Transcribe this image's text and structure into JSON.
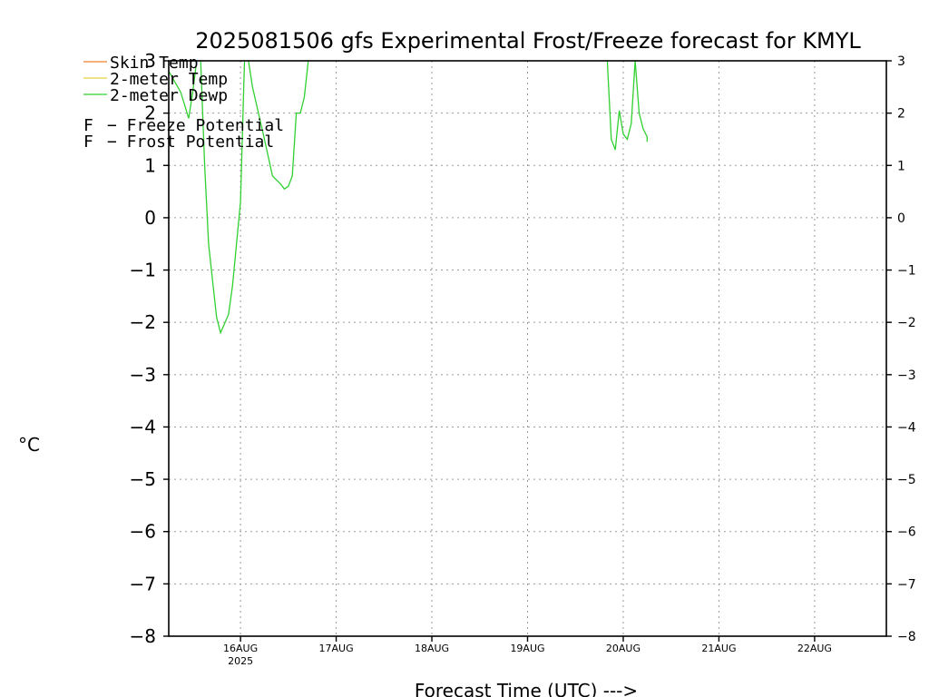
{
  "chart_data": {
    "type": "line",
    "title": "2025081506 gfs Experimental Frost/Freeze forecast for KMYL",
    "xlabel": "Forecast Time (UTC) --->",
    "ylabel": "°C",
    "ylim": [
      -8,
      3
    ],
    "y_ticks": [
      "3",
      "2",
      "1",
      "0",
      "−1",
      "−2",
      "−3",
      "−4",
      "−5",
      "−6",
      "−7",
      "−8"
    ],
    "x_range_days": [
      "2025-08-15T06",
      "2025-08-22T18"
    ],
    "x_ticks": [
      {
        "label": "16AUG",
        "sub": "2025",
        "t": "2025-08-16T00"
      },
      {
        "label": "17AUG",
        "sub": "",
        "t": "2025-08-17T00"
      },
      {
        "label": "18AUG",
        "sub": "",
        "t": "2025-08-18T00"
      },
      {
        "label": "19AUG",
        "sub": "",
        "t": "2025-08-19T00"
      },
      {
        "label": "20AUG",
        "sub": "",
        "t": "2025-08-20T00"
      },
      {
        "label": "21AUG",
        "sub": "",
        "t": "2025-08-21T00"
      },
      {
        "label": "22AUG",
        "sub": "",
        "t": "2025-08-22T00"
      }
    ],
    "grid": true,
    "legend": [
      {
        "name": "Skin Temp",
        "color": "#f08030",
        "type": "line"
      },
      {
        "name": "2-meter Temp",
        "color": "#e8d040",
        "type": "line"
      },
      {
        "name": "2-meter Dewp",
        "color": "#30d030",
        "type": "line"
      },
      {
        "name": "− Freeze Potential",
        "marker": "F",
        "color": "#d02090",
        "type": "marker"
      },
      {
        "name": "− Frost Potential",
        "marker": "F",
        "color": "#4060e0",
        "type": "marker"
      }
    ],
    "series": [
      {
        "name": "2-meter Dewp",
        "color": "#30d030",
        "segments": [
          [
            [
              "2025-08-15T06",
              2.8
            ],
            [
              "2025-08-15T09",
              2.4
            ],
            [
              "2025-08-15T11",
              1.9
            ],
            [
              "2025-08-15T12",
              2.4
            ],
            [
              "2025-08-15T13",
              3.0
            ]
          ],
          [
            [
              "2025-08-15T14",
              3.0
            ],
            [
              "2025-08-15T15",
              1.0
            ],
            [
              "2025-08-15T16",
              -0.5
            ],
            [
              "2025-08-15T18",
              -1.9
            ],
            [
              "2025-08-15T19",
              -2.2
            ],
            [
              "2025-08-15T21",
              -1.85
            ],
            [
              "2025-08-15T22",
              -1.3
            ],
            [
              "2025-08-15T23",
              -0.5
            ],
            [
              "2025-08-16T00",
              0.3
            ],
            [
              "2025-08-16T01",
              3.0
            ]
          ],
          [
            [
              "2025-08-16T02",
              3.0
            ],
            [
              "2025-08-16T03",
              2.5
            ],
            [
              "2025-08-16T06",
              1.5
            ],
            [
              "2025-08-16T08",
              0.8
            ],
            [
              "2025-08-16T10",
              0.65
            ],
            [
              "2025-08-16T11",
              0.55
            ],
            [
              "2025-08-16T12",
              0.6
            ],
            [
              "2025-08-16T13",
              0.8
            ],
            [
              "2025-08-16T14",
              2.0
            ],
            [
              "2025-08-16T15",
              2.0
            ],
            [
              "2025-08-16T16",
              2.3
            ],
            [
              "2025-08-16T17",
              3.0
            ]
          ],
          [
            [
              "2025-08-19T20",
              3.0
            ],
            [
              "2025-08-19T21",
              1.5
            ],
            [
              "2025-08-19T22",
              1.3
            ],
            [
              "2025-08-19T23",
              2.05
            ],
            [
              "2025-08-20T00",
              1.6
            ],
            [
              "2025-08-20T01",
              1.5
            ],
            [
              "2025-08-20T02",
              1.8
            ],
            [
              "2025-08-20T03",
              3.0
            ]
          ],
          [
            [
              "2025-08-20T03",
              3.0
            ],
            [
              "2025-08-20T04",
              2.0
            ],
            [
              "2025-08-20T05",
              1.7
            ],
            [
              "2025-08-20T06",
              1.55
            ],
            [
              "2025-08-20T06",
              1.45
            ]
          ]
        ]
      }
    ]
  }
}
